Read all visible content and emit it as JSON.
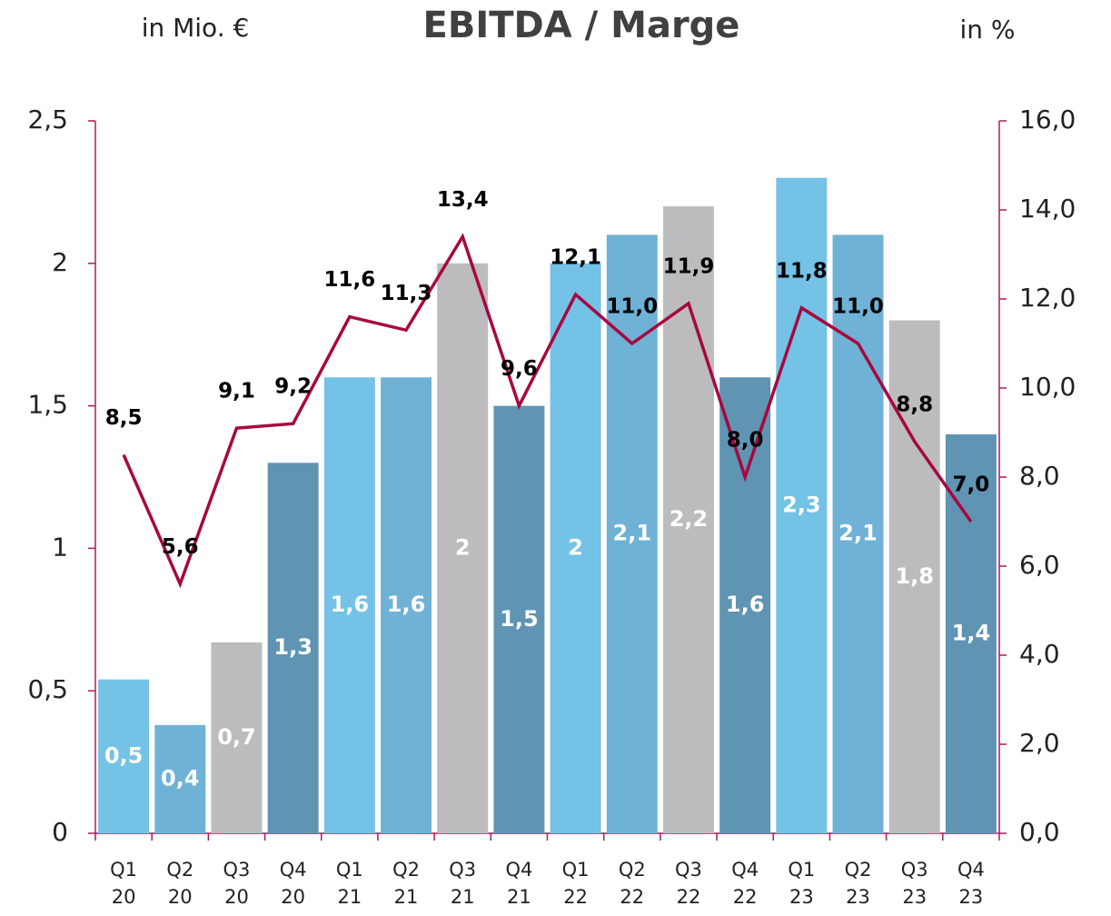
{
  "chart_data": {
    "type": "bar-line",
    "title": "EBITDA / Marge",
    "y_label": "in Mio. €",
    "y2_label": "in %",
    "categories": [
      "Q1 20",
      "Q2 20",
      "Q3 20",
      "Q4 20",
      "Q1 21",
      "Q2 21",
      "Q3 21",
      "Q4 21",
      "Q1 22",
      "Q2 22",
      "Q3 22",
      "Q4 22",
      "Q1 23",
      "Q2 23",
      "Q3 23",
      "Q4 23"
    ],
    "series": [
      {
        "name": "EBITDA",
        "type": "bar",
        "colors": [
          "#74c2e6",
          "#6fb2d6",
          "#bcbcbe",
          "#5f95b3",
          "#74c2e6",
          "#6fb2d6",
          "#bcbcbe",
          "#5f95b3",
          "#74c2e6",
          "#6fb2d6",
          "#bcbcbe",
          "#5f95b3",
          "#74c2e6",
          "#6fb2d6",
          "#bcbcbe",
          "#5f95b3"
        ],
        "values": [
          0.54,
          0.38,
          0.67,
          1.3,
          1.6,
          1.6,
          2,
          1.5,
          2,
          2.1,
          2.2,
          1.6,
          2.3,
          2.1,
          1.8,
          1.4
        ],
        "value_labels": [
          "0,5",
          "0,4",
          "0,7",
          "1,3",
          "1,6",
          "1,6",
          "2",
          "1,5",
          "2",
          "2,1",
          "2,2",
          "1,6",
          "2,3",
          "2,1",
          "1,8",
          "1,4"
        ]
      },
      {
        "name": "Marge",
        "type": "line",
        "axis": "y2",
        "color": "#a8083f",
        "values": [
          8.5,
          5.6,
          9.1,
          9.2,
          11.6,
          11.3,
          13.4,
          9.6,
          12.1,
          11.0,
          11.9,
          8.0,
          11.8,
          11.0,
          8.8,
          7.0
        ],
        "value_labels": [
          "8,5",
          "5,6",
          "9,1",
          "9,2",
          "11,6",
          "11,3",
          "13,4",
          "9,6",
          "12,1",
          "11,0",
          "11,9",
          "8,0",
          "11,8",
          "11,0",
          "8,8",
          "7,0"
        ]
      }
    ],
    "ylim": [
      0,
      2.5
    ],
    "yticks": [
      0,
      {
        "value": 0.5,
        "label": "0,5"
      },
      1,
      {
        "value": 1.5,
        "label": "1,5"
      },
      2,
      {
        "value": 2.5,
        "label": "2,5"
      }
    ],
    "y2lim": [
      0,
      16
    ],
    "y2ticks": [
      {
        "value": 0,
        "label": "0,0"
      },
      {
        "value": 2,
        "label": "2,0"
      },
      {
        "value": 4,
        "label": "4,0"
      },
      {
        "value": 6,
        "label": "6,0"
      },
      {
        "value": 8,
        "label": "8,0"
      },
      {
        "value": 10,
        "label": "10,0"
      },
      {
        "value": 12,
        "label": "12,0"
      },
      {
        "value": 14,
        "label": "14,0"
      },
      {
        "value": 16,
        "label": "16,0"
      }
    ],
    "axis_color": "#b0185a"
  }
}
